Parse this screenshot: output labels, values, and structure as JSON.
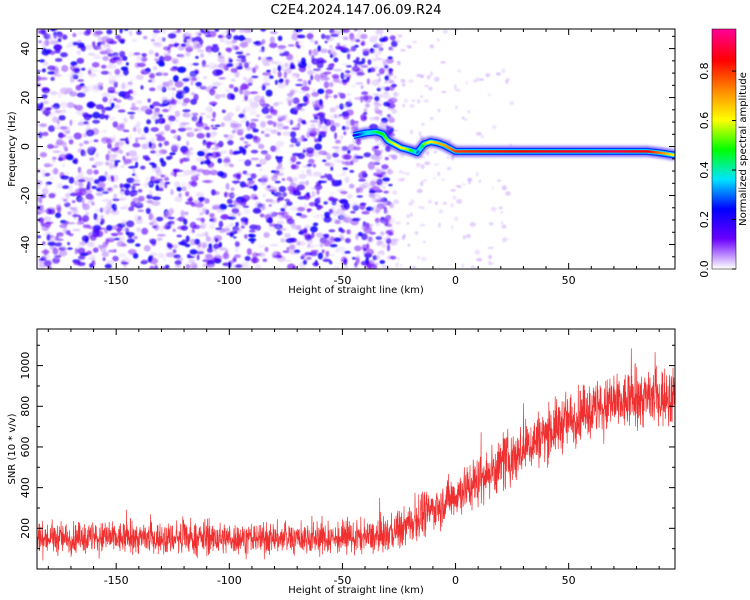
{
  "title": "C2E4.2024.147.06.09.R24",
  "chart_data": [
    {
      "type": "heatmap",
      "xlabel": "Height of straight line (km)",
      "ylabel": "Frequency (Hz)",
      "xlim": [
        -185,
        97
      ],
      "ylim": [
        -50,
        48
      ],
      "x_ticks": [
        -150,
        -100,
        -50,
        0,
        50
      ],
      "y_ticks": [
        -40,
        -20,
        0,
        20,
        40
      ],
      "colorbar": {
        "label": "Normalized spectral amplitude",
        "range": [
          0,
          0.97
        ],
        "ticks": [
          0.0,
          0.2,
          0.4,
          0.6,
          0.8
        ],
        "colormap": [
          "#ffffff",
          "#6a00ff",
          "#0000ff",
          "#00e5ff",
          "#00ff00",
          "#ffff00",
          "#ff8800",
          "#ff0000",
          "#ff0090"
        ]
      },
      "noise_region_x": [
        -185,
        -35
      ],
      "signal_trace": {
        "x": [
          -45,
          -40,
          -35,
          -32,
          -30,
          -27,
          -24,
          -21,
          -19,
          -17,
          -14,
          -11,
          -8,
          -5,
          -2,
          0,
          10,
          30,
          50,
          70,
          85,
          90,
          97
        ],
        "y": [
          4.5,
          5.5,
          6,
          5,
          2.5,
          1,
          -0.5,
          -1.2,
          -1.8,
          -2.5,
          1,
          2,
          1.5,
          0.5,
          -1,
          -2,
          -2,
          -2,
          -2,
          -2,
          -2,
          -2.5,
          -3.5
        ],
        "amplitude": [
          0.2,
          0.35,
          0.45,
          0.5,
          0.55,
          0.6,
          0.62,
          0.55,
          0.45,
          0.3,
          0.55,
          0.62,
          0.68,
          0.7,
          0.75,
          0.8,
          0.82,
          0.85,
          0.87,
          0.9,
          0.85,
          0.75,
          0.6
        ]
      }
    },
    {
      "type": "line",
      "xlabel": "Height of straight line (km)",
      "ylabel": "SNR (10 * v/v)",
      "xlim": [
        -185,
        97
      ],
      "ylim": [
        0,
        1180
      ],
      "x_ticks": [
        -150,
        -100,
        -50,
        0,
        50
      ],
      "y_ticks": [
        200,
        400,
        600,
        800,
        1000
      ],
      "color": "#f03030",
      "series": [
        {
          "x": [
            -185,
            -150,
            -100,
            -50,
            -35,
            -25,
            -15,
            -5,
            5,
            15,
            25,
            35,
            45,
            55,
            65,
            75,
            85,
            97
          ],
          "y": [
            150,
            150,
            150,
            150,
            155,
            190,
            260,
            330,
            400,
            470,
            550,
            630,
            700,
            760,
            790,
            820,
            840,
            850
          ],
          "spread": [
            85,
            85,
            85,
            85,
            90,
            100,
            110,
            120,
            130,
            140,
            150,
            150,
            150,
            150,
            150,
            155,
            160,
            160
          ]
        }
      ]
    }
  ]
}
